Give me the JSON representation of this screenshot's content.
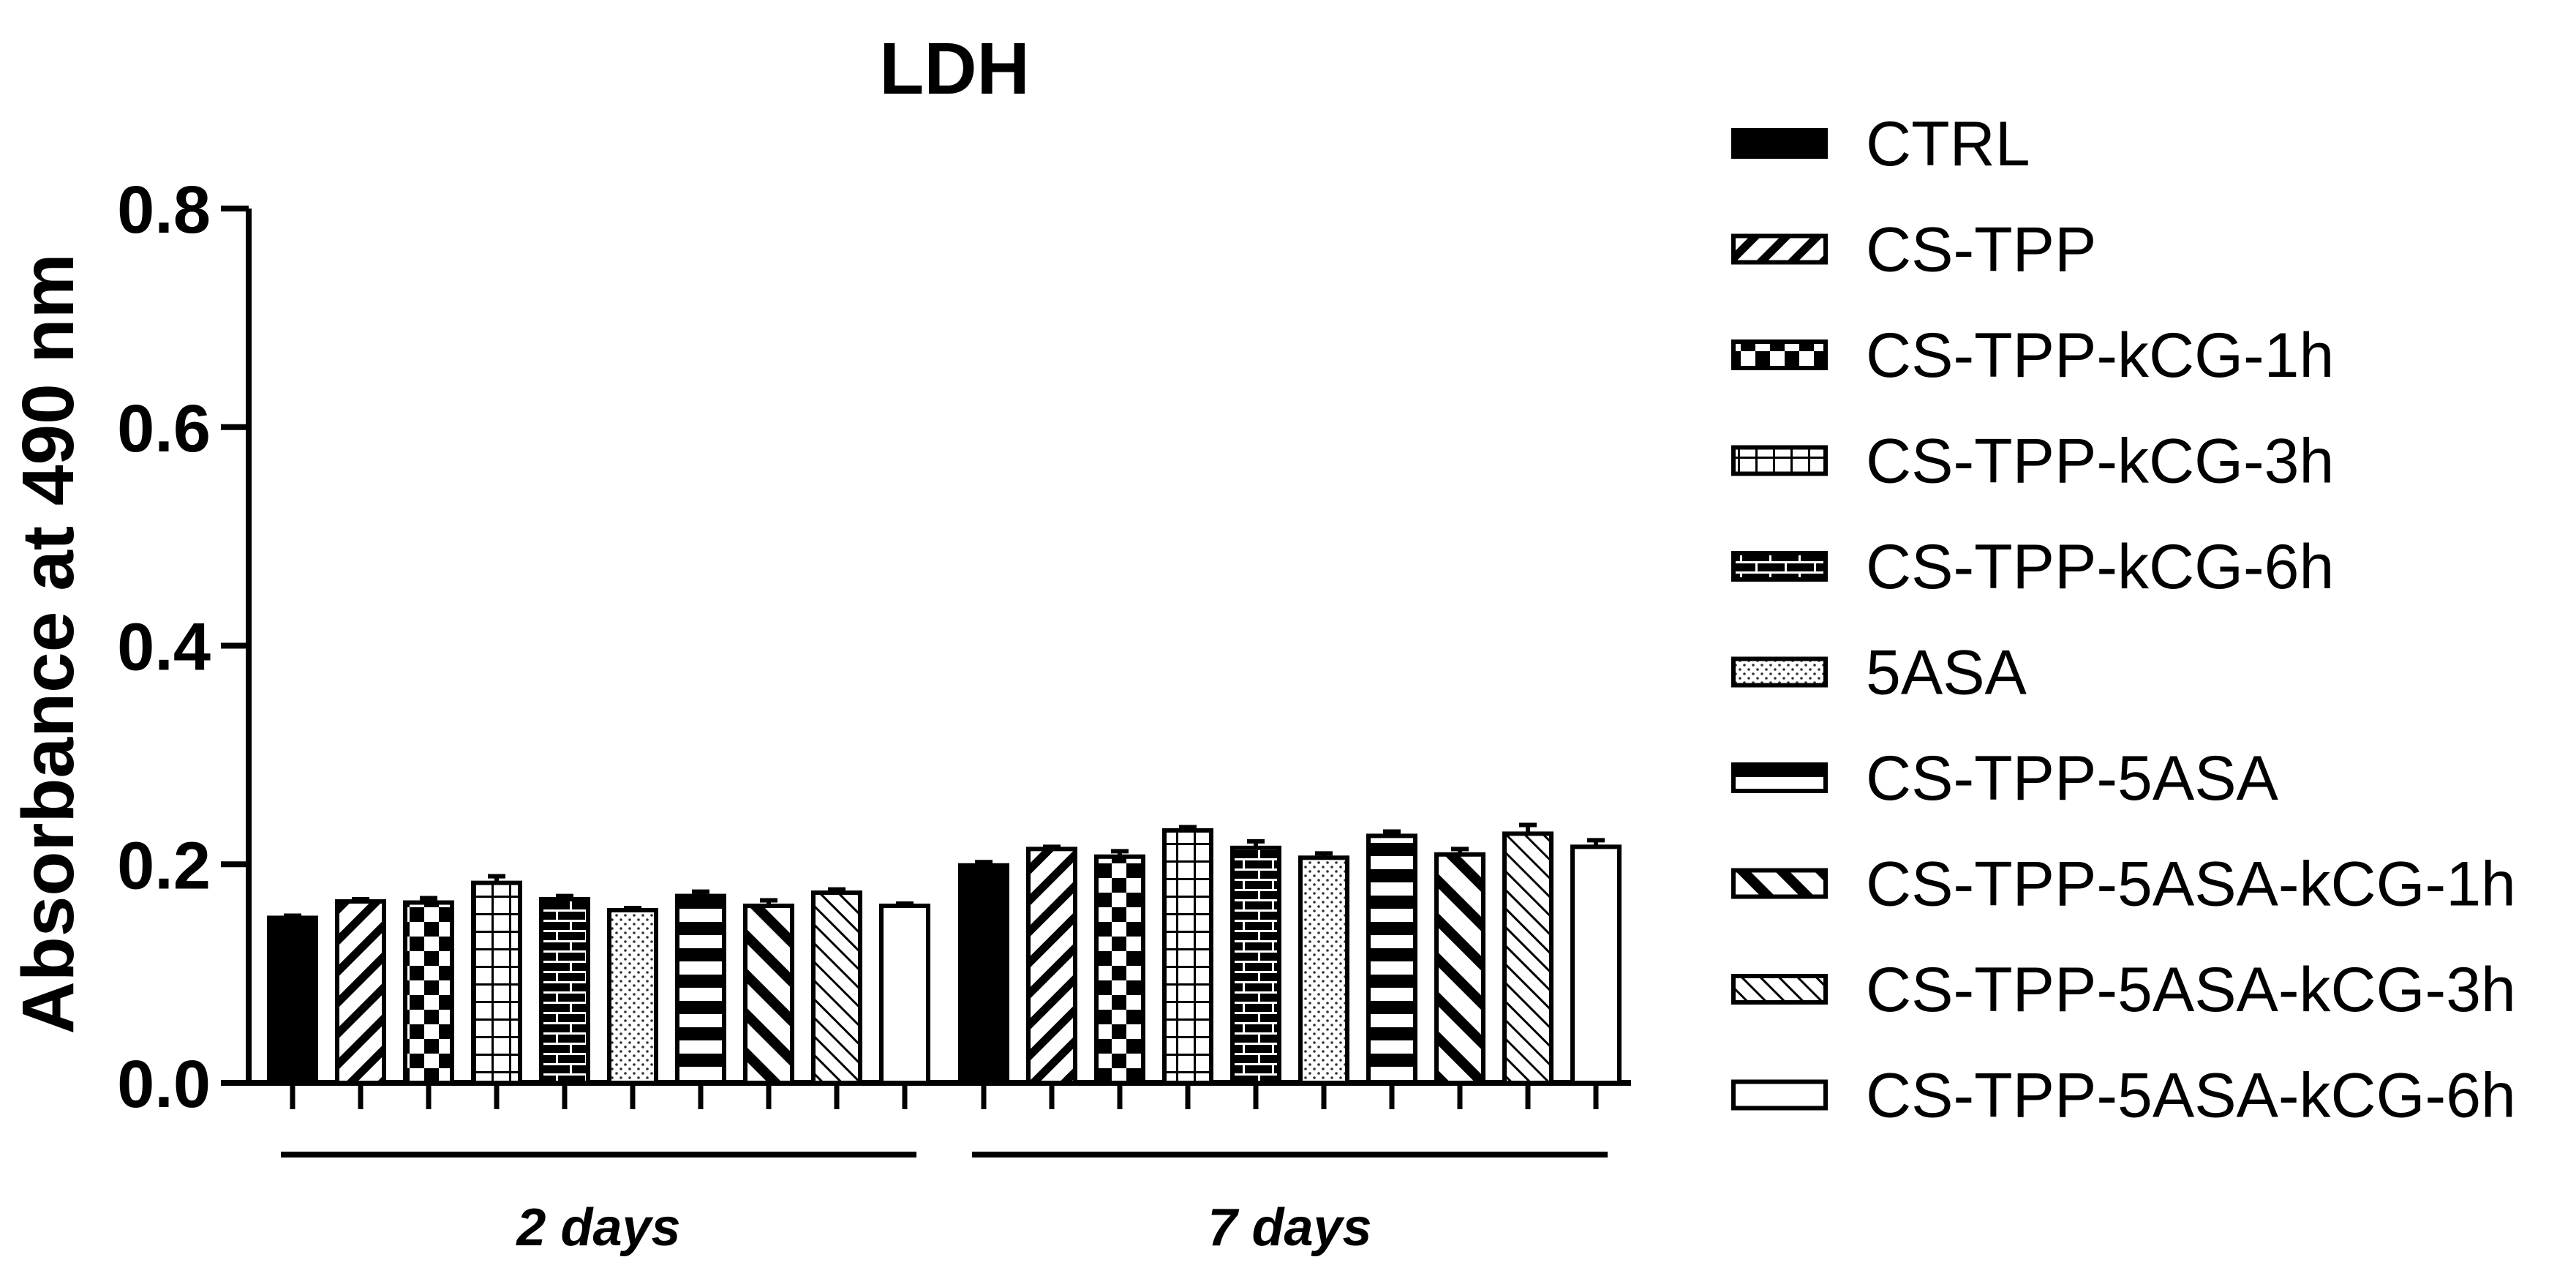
{
  "chart_data": {
    "type": "bar",
    "title": "LDH",
    "xlabel": "",
    "ylabel": "Absorbance at 490 nm",
    "ylim": [
      0,
      0.8
    ],
    "yticks": [
      "0.0",
      "0.2",
      "0.4",
      "0.6",
      "0.8"
    ],
    "categories": [
      "2 days",
      "7 days"
    ],
    "legend_position": "right",
    "grid": false,
    "series": [
      {
        "name": "CTRL",
        "pattern": "solid",
        "values": [
          0.151,
          0.199
        ],
        "errors": [
          0.002,
          0.003
        ]
      },
      {
        "name": "CS-TPP",
        "pattern": "diag-down",
        "values": [
          0.166,
          0.214
        ],
        "errors": [
          0.002,
          0.002
        ]
      },
      {
        "name": "CS-TPP-kCG-1h",
        "pattern": "checker",
        "values": [
          0.165,
          0.207
        ],
        "errors": [
          0.004,
          0.005
        ]
      },
      {
        "name": "CS-TPP-kCG-3h",
        "pattern": "grid",
        "values": [
          0.183,
          0.231
        ],
        "errors": [
          0.006,
          0.003
        ]
      },
      {
        "name": "CS-TPP-kCG-6h",
        "pattern": "brick",
        "values": [
          0.168,
          0.215
        ],
        "errors": [
          0.003,
          0.006
        ]
      },
      {
        "name": "5ASA",
        "pattern": "dots",
        "values": [
          0.158,
          0.206
        ],
        "errors": [
          0.002,
          0.004
        ]
      },
      {
        "name": "CS-TPP-5ASA",
        "pattern": "horizontal",
        "values": [
          0.171,
          0.226
        ],
        "errors": [
          0.004,
          0.004
        ]
      },
      {
        "name": "CS-TPP-5ASA-kCG-1h",
        "pattern": "diag-up-thick",
        "values": [
          0.162,
          0.209
        ],
        "errors": [
          0.005,
          0.005
        ]
      },
      {
        "name": "CS-TPP-5ASA-kCG-3h",
        "pattern": "diag-up-thin",
        "values": [
          0.174,
          0.228
        ],
        "errors": [
          0.003,
          0.008
        ]
      },
      {
        "name": "CS-TPP-5ASA-kCG-6h",
        "pattern": "empty",
        "values": [
          0.162,
          0.216
        ],
        "errors": [
          0.002,
          0.006
        ]
      }
    ]
  }
}
